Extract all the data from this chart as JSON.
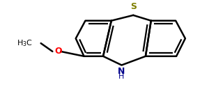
{
  "bg_color": "#ffffff",
  "bond_color": "#000000",
  "S_color": "#808000",
  "N_color": "#00008B",
  "O_color": "#FF0000",
  "line_width": 1.8,
  "figsize": [
    3.0,
    1.25
  ],
  "dpi": 100,
  "S_text": "S",
  "N_text": "N",
  "H_text": "H",
  "O_text": "O",
  "methyl_text": "H₃C"
}
